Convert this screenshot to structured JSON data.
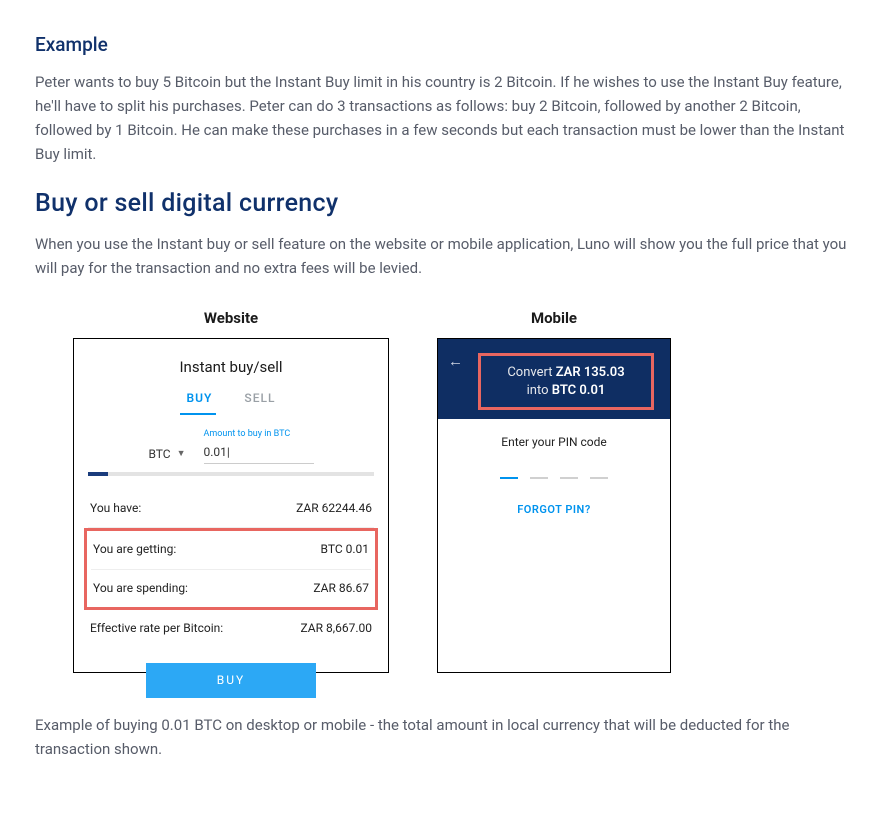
{
  "example": {
    "heading": "Example",
    "text": "Peter wants to buy 5 Bitcoin but the Instant Buy limit in his country is 2 Bitcoin. If he wishes to use the Instant Buy feature, he'll have to split his purchases. Peter can do 3 transactions as follows: buy 2 Bitcoin, followed by another 2 Bitcoin, followed by 1 Bitcoin. He can make these purchases in a few seconds but each transaction must be lower than the Instant Buy limit."
  },
  "section": {
    "heading": "Buy or sell digital currency",
    "intro": "When you use the Instant buy or sell feature on the website or mobile application, Luno will show you the full price that you will pay for the transaction and no extra fees will be levied."
  },
  "columns": {
    "website_title": "Website",
    "mobile_title": "Mobile"
  },
  "website_ui": {
    "title": "Instant buy/sell",
    "tab_buy": "BUY",
    "tab_sell": "SELL",
    "currency_sel": "BTC",
    "amount_label": "Amount to buy in BTC",
    "amount_value": "0.01|",
    "rows": {
      "you_have_label": "You have:",
      "you_have_value": "ZAR 62244.46",
      "you_get_label": "You are getting:",
      "you_get_value": "BTC 0.01",
      "you_spend_label": "You are spending:",
      "you_spend_value": "ZAR 86.67",
      "rate_label": "Effective rate per Bitcoin:",
      "rate_value": "ZAR 8,667.00"
    },
    "buy_btn": "BUY",
    "accent_color": "#0093ee",
    "highlight_border": "#e86660",
    "header_navy": "#0f2e63"
  },
  "mobile_ui": {
    "convert_prefix": "Convert ",
    "convert_zar": "ZAR 135.03",
    "convert_mid": "into ",
    "convert_btc": "BTC 0.01",
    "pin_label": "Enter your PIN code",
    "forgot": "FORGOT PIN?"
  },
  "caption": "Example of buying 0.01 BTC on desktop or mobile - the total amount in local currency that will be deducted for the transaction shown."
}
